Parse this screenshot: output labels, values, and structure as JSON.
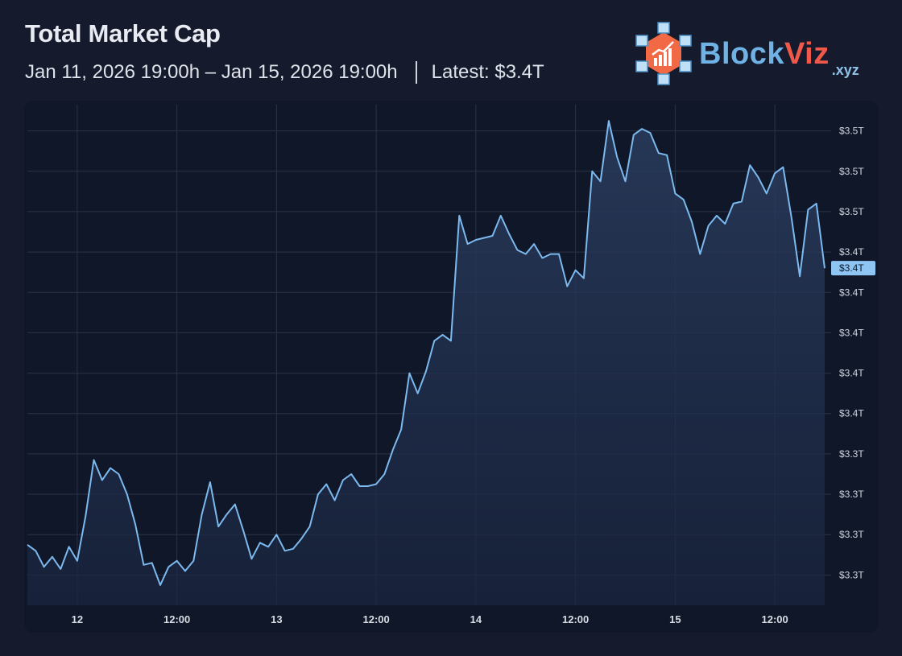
{
  "header": {
    "title": "Total Market Cap",
    "range": "Jan 11, 2026 19:00h – Jan 15, 2026 19:00h",
    "latest": "Latest: $3.4T"
  },
  "logo": {
    "name_a": "Block",
    "name_b": "Viz",
    "tld": ".xyz"
  },
  "colors": {
    "line": "#7cb9ef",
    "background": "#151b2c",
    "panel": "#101729",
    "grid": "#2a3348",
    "logo_blue": "#6fb3e6",
    "logo_red": "#f0584a"
  },
  "chart_data": {
    "type": "area",
    "title": "Total Market Cap",
    "xlabel": "",
    "ylabel": "",
    "x_unit": "hours since Jan 11, 2026 19:00",
    "x_range": [
      0,
      96
    ],
    "ylim": [
      3.265,
      3.513
    ],
    "grid": true,
    "x_ticks": [
      {
        "hour": 6,
        "label": "12"
      },
      {
        "hour": 18,
        "label": "12:00"
      },
      {
        "hour": 30,
        "label": "13"
      },
      {
        "hour": 42,
        "label": "12:00"
      },
      {
        "hour": 54,
        "label": "14"
      },
      {
        "hour": 66,
        "label": "12:00"
      },
      {
        "hour": 78,
        "label": "15"
      },
      {
        "hour": 90,
        "label": "12:00"
      }
    ],
    "y_ticks": [
      {
        "value": 3.5,
        "label": "$3.5T"
      },
      {
        "value": 3.48,
        "label": "$3.5T"
      },
      {
        "value": 3.46,
        "label": "$3.5T"
      },
      {
        "value": 3.44,
        "label": "$3.4T"
      },
      {
        "value": 3.42,
        "label": "$3.4T"
      },
      {
        "value": 3.4,
        "label": "$3.4T"
      },
      {
        "value": 3.38,
        "label": "$3.4T"
      },
      {
        "value": 3.36,
        "label": "$3.4T"
      },
      {
        "value": 3.34,
        "label": "$3.3T"
      },
      {
        "value": 3.32,
        "label": "$3.3T"
      },
      {
        "value": 3.3,
        "label": "$3.3T"
      },
      {
        "value": 3.28,
        "label": "$3.3T"
      }
    ],
    "last_value_label": "$3.4T",
    "series": [
      {
        "name": "Total Market Cap (T USD)",
        "values": [
          3.295,
          3.292,
          3.284,
          3.289,
          3.283,
          3.294,
          3.287,
          3.309,
          3.337,
          3.327,
          3.333,
          3.33,
          3.32,
          3.305,
          3.285,
          3.286,
          3.275,
          3.284,
          3.287,
          3.282,
          3.287,
          3.31,
          3.326,
          3.304,
          3.31,
          3.315,
          3.302,
          3.288,
          3.296,
          3.294,
          3.3,
          3.292,
          3.293,
          3.298,
          3.304,
          3.32,
          3.325,
          3.317,
          3.327,
          3.33,
          3.324,
          3.324,
          3.325,
          3.33,
          3.342,
          3.352,
          3.38,
          3.37,
          3.381,
          3.396,
          3.399,
          3.396,
          3.458,
          3.444,
          3.446,
          3.447,
          3.448,
          3.458,
          3.449,
          3.441,
          3.439,
          3.444,
          3.437,
          3.439,
          3.439,
          3.423,
          3.431,
          3.427,
          3.48,
          3.475,
          3.505,
          3.487,
          3.475,
          3.498,
          3.501,
          3.499,
          3.489,
          3.488,
          3.469,
          3.466,
          3.455,
          3.439,
          3.453,
          3.458,
          3.454,
          3.464,
          3.465,
          3.483,
          3.477,
          3.469,
          3.479,
          3.482,
          3.457,
          3.428,
          3.461,
          3.464,
          3.432
        ]
      }
    ]
  }
}
